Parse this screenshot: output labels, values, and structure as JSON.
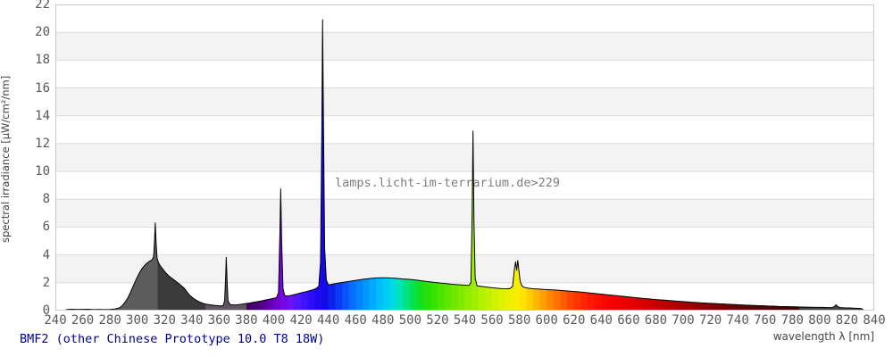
{
  "title": {
    "text": "BMF2 (other Chinese Prototype 10.0 T8 18W)"
  },
  "watermark": {
    "text": "lamps.licht-im-terrarium.de>229"
  },
  "style": {
    "title_color": "#000099",
    "tick_color": "#595959",
    "label_color": "#444444",
    "grid_color": "#dcdcdc",
    "band_fill": "#f3f3f3",
    "border_color": "#c9c9c9",
    "watermark_color": "#7d7d7d",
    "outline_color": "#000000",
    "background": "#ffffff"
  },
  "chart_data": {
    "type": "area",
    "title": "BMF2 (other Chinese Prototype 10.0 T8 18W)",
    "xlabel": "wavelength λ [nm]",
    "ylabel": "spectral irradiance [µW/cm²/nm]",
    "xlim": [
      240,
      840
    ],
    "ylim": [
      0,
      22
    ],
    "x_ticks": [
      240,
      260,
      280,
      300,
      320,
      340,
      360,
      380,
      400,
      420,
      440,
      460,
      480,
      500,
      520,
      540,
      560,
      580,
      600,
      620,
      640,
      660,
      680,
      700,
      720,
      740,
      760,
      780,
      800,
      820,
      840
    ],
    "y_ticks": [
      0,
      2,
      4,
      6,
      8,
      10,
      12,
      14,
      16,
      18,
      20,
      22
    ],
    "grid": "horizontal-bands-every-2-units",
    "legend": "none",
    "peaks": [
      {
        "nm": 313,
        "value": 6.3
      },
      {
        "nm": 365,
        "value": 3.8
      },
      {
        "nm": 405,
        "value": 8.75
      },
      {
        "nm": 436,
        "value": 20.9
      },
      {
        "nm": 546,
        "value": 12.9
      },
      {
        "nm": 577,
        "value": 3.5
      },
      {
        "nm": 579,
        "value": 3.6
      },
      {
        "nm": 812,
        "value": 0.4
      }
    ],
    "points": [
      [
        248,
        0.07
      ],
      [
        252,
        0.1
      ],
      [
        256,
        0.08
      ],
      [
        260,
        0.09
      ],
      [
        264,
        0.1
      ],
      [
        268,
        0.07
      ],
      [
        272,
        0.08
      ],
      [
        276,
        0.07
      ],
      [
        280,
        0.08
      ],
      [
        284,
        0.12
      ],
      [
        287,
        0.2
      ],
      [
        289,
        0.35
      ],
      [
        291,
        0.6
      ],
      [
        293,
        0.9
      ],
      [
        295,
        1.3
      ],
      [
        297,
        1.75
      ],
      [
        299,
        2.2
      ],
      [
        301,
        2.6
      ],
      [
        303,
        2.95
      ],
      [
        305,
        3.2
      ],
      [
        307,
        3.4
      ],
      [
        309,
        3.55
      ],
      [
        311,
        3.65
      ],
      [
        312,
        3.9
      ],
      [
        312.7,
        5.1
      ],
      [
        313.2,
        6.3
      ],
      [
        313.8,
        4.9
      ],
      [
        314.5,
        3.8
      ],
      [
        315.5,
        3.45
      ],
      [
        317,
        3.2
      ],
      [
        319,
        2.95
      ],
      [
        321,
        2.7
      ],
      [
        323,
        2.5
      ],
      [
        325,
        2.35
      ],
      [
        327,
        2.2
      ],
      [
        329,
        2.05
      ],
      [
        331,
        1.9
      ],
      [
        333,
        1.72
      ],
      [
        334.5,
        1.6
      ],
      [
        336,
        1.4
      ],
      [
        338,
        1.15
      ],
      [
        340,
        0.97
      ],
      [
        342,
        0.82
      ],
      [
        344,
        0.7
      ],
      [
        346,
        0.6
      ],
      [
        348,
        0.53
      ],
      [
        350,
        0.47
      ],
      [
        352,
        0.43
      ],
      [
        355,
        0.39
      ],
      [
        358,
        0.36
      ],
      [
        361,
        0.34
      ],
      [
        363,
        0.36
      ],
      [
        364,
        0.7
      ],
      [
        364.8,
        2.5
      ],
      [
        365.2,
        3.83
      ],
      [
        365.8,
        2.2
      ],
      [
        366.5,
        0.7
      ],
      [
        368,
        0.43
      ],
      [
        370,
        0.41
      ],
      [
        373,
        0.42
      ],
      [
        376,
        0.45
      ],
      [
        379,
        0.5
      ],
      [
        382,
        0.54
      ],
      [
        385,
        0.59
      ],
      [
        388,
        0.64
      ],
      [
        391,
        0.7
      ],
      [
        394,
        0.76
      ],
      [
        397,
        0.82
      ],
      [
        400,
        0.88
      ],
      [
        402,
        0.93
      ],
      [
        403.5,
        1.3
      ],
      [
        404.5,
        5.5
      ],
      [
        405.1,
        8.75
      ],
      [
        405.8,
        5.0
      ],
      [
        406.8,
        1.6
      ],
      [
        408,
        1.08
      ],
      [
        410,
        1.05
      ],
      [
        413,
        1.1
      ],
      [
        416,
        1.17
      ],
      [
        419,
        1.25
      ],
      [
        422,
        1.32
      ],
      [
        425,
        1.4
      ],
      [
        428,
        1.48
      ],
      [
        431,
        1.58
      ],
      [
        433,
        1.75
      ],
      [
        434.3,
        3.5
      ],
      [
        435.2,
        12.5
      ],
      [
        435.8,
        20.9
      ],
      [
        436.5,
        13.0
      ],
      [
        437.3,
        4.5
      ],
      [
        438.5,
        2.2
      ],
      [
        440,
        1.85
      ],
      [
        443,
        1.9
      ],
      [
        446,
        1.96
      ],
      [
        450,
        2.02
      ],
      [
        454,
        2.08
      ],
      [
        458,
        2.14
      ],
      [
        462,
        2.2
      ],
      [
        466,
        2.26
      ],
      [
        470,
        2.3
      ],
      [
        474,
        2.34
      ],
      [
        478,
        2.36
      ],
      [
        482,
        2.36
      ],
      [
        486,
        2.34
      ],
      [
        490,
        2.32
      ],
      [
        494,
        2.28
      ],
      [
        498,
        2.25
      ],
      [
        502,
        2.22
      ],
      [
        506,
        2.17
      ],
      [
        510,
        2.12
      ],
      [
        514,
        2.07
      ],
      [
        518,
        2.02
      ],
      [
        522,
        1.98
      ],
      [
        526,
        1.94
      ],
      [
        530,
        1.9
      ],
      [
        534,
        1.87
      ],
      [
        538,
        1.84
      ],
      [
        541,
        1.82
      ],
      [
        543,
        1.81
      ],
      [
        544.5,
        2.0
      ],
      [
        545.4,
        7.0
      ],
      [
        546,
        12.9
      ],
      [
        546.7,
        6.5
      ],
      [
        547.6,
        2.3
      ],
      [
        549,
        1.78
      ],
      [
        552,
        1.74
      ],
      [
        556,
        1.69
      ],
      [
        560,
        1.64
      ],
      [
        564,
        1.6
      ],
      [
        568,
        1.57
      ],
      [
        571,
        1.56
      ],
      [
        573,
        1.58
      ],
      [
        575,
        1.75
      ],
      [
        576.5,
        3.1
      ],
      [
        577.2,
        3.5
      ],
      [
        578,
        2.9
      ],
      [
        578.8,
        3.6
      ],
      [
        579.6,
        2.9
      ],
      [
        580.6,
        2.1
      ],
      [
        582,
        1.75
      ],
      [
        584,
        1.65
      ],
      [
        587,
        1.6
      ],
      [
        590,
        1.57
      ],
      [
        594,
        1.55
      ],
      [
        598,
        1.52
      ],
      [
        602,
        1.5
      ],
      [
        606,
        1.48
      ],
      [
        610,
        1.45
      ],
      [
        614,
        1.42
      ],
      [
        618,
        1.39
      ],
      [
        622,
        1.36
      ],
      [
        626,
        1.32
      ],
      [
        630,
        1.28
      ],
      [
        634,
        1.24
      ],
      [
        638,
        1.2
      ],
      [
        642,
        1.16
      ],
      [
        646,
        1.12
      ],
      [
        650,
        1.08
      ],
      [
        654,
        1.04
      ],
      [
        658,
        1.0
      ],
      [
        662,
        0.96
      ],
      [
        666,
        0.92
      ],
      [
        670,
        0.88
      ],
      [
        674,
        0.85
      ],
      [
        678,
        0.81
      ],
      [
        682,
        0.78
      ],
      [
        686,
        0.75
      ],
      [
        690,
        0.72
      ],
      [
        694,
        0.69
      ],
      [
        698,
        0.66
      ],
      [
        702,
        0.63
      ],
      [
        706,
        0.6
      ],
      [
        710,
        0.58
      ],
      [
        714,
        0.55
      ],
      [
        718,
        0.53
      ],
      [
        722,
        0.51
      ],
      [
        726,
        0.49
      ],
      [
        730,
        0.47
      ],
      [
        734,
        0.45
      ],
      [
        738,
        0.43
      ],
      [
        742,
        0.41
      ],
      [
        746,
        0.39
      ],
      [
        750,
        0.38
      ],
      [
        754,
        0.36
      ],
      [
        758,
        0.35
      ],
      [
        762,
        0.33
      ],
      [
        766,
        0.32
      ],
      [
        770,
        0.3
      ],
      [
        774,
        0.29
      ],
      [
        778,
        0.28
      ],
      [
        782,
        0.27
      ],
      [
        786,
        0.26
      ],
      [
        790,
        0.25
      ],
      [
        794,
        0.24
      ],
      [
        798,
        0.23
      ],
      [
        802,
        0.23
      ],
      [
        806,
        0.22
      ],
      [
        809,
        0.22
      ],
      [
        811,
        0.3
      ],
      [
        812,
        0.42
      ],
      [
        813,
        0.3
      ],
      [
        815,
        0.22
      ],
      [
        818,
        0.2
      ],
      [
        822,
        0.19
      ],
      [
        826,
        0.17
      ],
      [
        830,
        0.15
      ],
      [
        831.5,
        0.1
      ],
      [
        832,
        0
      ]
    ],
    "spectral_palette": [
      [
        240,
        "#5c5c5c"
      ],
      [
        315,
        "#5c5c5c"
      ],
      [
        315.1,
        "#3b3b3b"
      ],
      [
        350,
        "#3b3b3b"
      ],
      [
        350.1,
        "#5e5560"
      ],
      [
        378,
        "#5e5560"
      ],
      [
        378.1,
        "#35004d"
      ],
      [
        385,
        "#44006b"
      ],
      [
        395,
        "#5c00a3"
      ],
      [
        405,
        "#7d00db"
      ],
      [
        412,
        "#6a14f0"
      ],
      [
        420,
        "#4617ff"
      ],
      [
        430,
        "#2309f5"
      ],
      [
        437,
        "#1508e8"
      ],
      [
        445,
        "#0b2cf0"
      ],
      [
        455,
        "#0a60ff"
      ],
      [
        465,
        "#008fff"
      ],
      [
        475,
        "#00b4ff"
      ],
      [
        485,
        "#00d4f0"
      ],
      [
        492,
        "#00e3c0"
      ],
      [
        500,
        "#00e362"
      ],
      [
        508,
        "#12df1b"
      ],
      [
        515,
        "#2fe000"
      ],
      [
        525,
        "#55e600"
      ],
      [
        535,
        "#78ea00"
      ],
      [
        545,
        "#99ee00"
      ],
      [
        555,
        "#baf200"
      ],
      [
        565,
        "#d8f200"
      ],
      [
        572,
        "#eaf200"
      ],
      [
        578,
        "#f8ee00"
      ],
      [
        583,
        "#ffe300"
      ],
      [
        588,
        "#ffcc00"
      ],
      [
        595,
        "#ffaa00"
      ],
      [
        602,
        "#ff8800"
      ],
      [
        610,
        "#ff6600"
      ],
      [
        618,
        "#ff4400"
      ],
      [
        626,
        "#ff2a00"
      ],
      [
        635,
        "#ff1200"
      ],
      [
        645,
        "#fa0000"
      ],
      [
        655,
        "#ef0000"
      ],
      [
        665,
        "#e00000"
      ],
      [
        675,
        "#d00000"
      ],
      [
        685,
        "#bf0000"
      ],
      [
        695,
        "#ad0000"
      ],
      [
        705,
        "#9c0000"
      ],
      [
        715,
        "#8c0000"
      ],
      [
        725,
        "#7d0000"
      ],
      [
        735,
        "#700000"
      ],
      [
        745,
        "#640000"
      ],
      [
        755,
        "#590000"
      ],
      [
        765,
        "#500000"
      ],
      [
        775,
        "#480000"
      ],
      [
        783,
        "#420000"
      ],
      [
        788,
        "#454545"
      ],
      [
        840,
        "#454545"
      ]
    ],
    "color_band_width_nm": 5
  }
}
